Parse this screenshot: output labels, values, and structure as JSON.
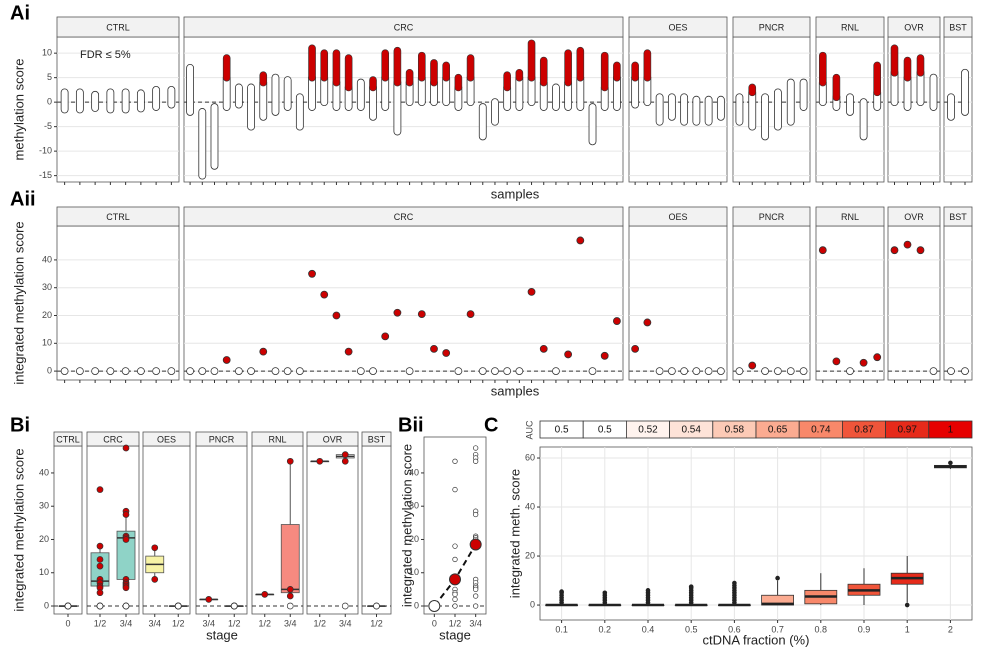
{
  "chart_data": [
    {
      "type": "strip",
      "label": "Ai",
      "ylabel": "methylation score",
      "xlabel": "samples",
      "annotation": "FDR ≤ 5%",
      "ylim": [
        -16.3,
        13.3
      ],
      "yticks": [
        -15,
        -10,
        -5,
        0,
        5,
        10
      ],
      "grid": true,
      "hline": 0,
      "color": "#ffffff",
      "sig_color": "#cc0000",
      "facets": [
        {
          "name": "CTRL",
          "low": [
            -1.5,
            -1.5,
            -1.2,
            -1.5,
            -1.5,
            -1.3,
            -1,
            -0.5
          ],
          "high": [
            2,
            2,
            1.5,
            2,
            2,
            1.8,
            2.5,
            2.5
          ],
          "sig": [
            null,
            null,
            null,
            null,
            null,
            null,
            null,
            null
          ]
        },
        {
          "name": "CRC",
          "low": [
            -2,
            -15,
            -13,
            -1,
            -0.5,
            -5,
            -3,
            -2,
            -1,
            -5,
            -1,
            0,
            -1,
            -1,
            -1,
            -3,
            -1,
            -6,
            0,
            0,
            0,
            0,
            -1,
            0,
            -7,
            -4,
            -1,
            -1,
            0,
            -1,
            -1,
            -1,
            -1,
            -8,
            -1,
            -1
          ],
          "high": [
            7,
            -2,
            -1,
            5,
            3,
            3,
            4,
            5,
            4.5,
            1,
            5,
            5,
            4,
            3,
            4,
            3,
            5,
            4,
            4,
            5,
            4,
            5,
            3,
            5,
            -1,
            0,
            3,
            5,
            5,
            4,
            3,
            4,
            5,
            -1,
            3,
            5
          ],
          "sig": [
            null,
            null,
            null,
            9,
            null,
            null,
            5.5,
            null,
            null,
            null,
            11,
            10,
            10,
            9,
            null,
            4.5,
            10,
            10.5,
            6,
            9.5,
            8,
            7.5,
            5,
            9,
            null,
            null,
            5.5,
            6,
            12,
            8.5,
            null,
            10,
            10.5,
            null,
            9.5,
            7.5
          ]
        },
        {
          "name": "OES",
          "low": [
            -0.5,
            0,
            -4,
            -3,
            -4,
            -4,
            -4,
            -3
          ],
          "high": [
            5,
            5,
            1,
            1,
            1,
            0.5,
            0.5,
            0.5
          ],
          "sig": [
            7.5,
            10,
            null,
            null,
            null,
            null,
            null,
            null
          ]
        },
        {
          "name": "PNCR",
          "low": [
            -4,
            -5,
            -7,
            -5,
            -4,
            -1
          ],
          "high": [
            1,
            2,
            1,
            2,
            4,
            4
          ],
          "sig": [
            null,
            3,
            null,
            null,
            null,
            null
          ]
        },
        {
          "name": "RNL",
          "low": [
            0,
            -1,
            -2,
            -7,
            -1
          ],
          "high": [
            4,
            1,
            1,
            0,
            2
          ],
          "sig": [
            9.5,
            5,
            null,
            null,
            7.5
          ]
        },
        {
          "name": "OVR",
          "low": [
            0,
            -1,
            0,
            -1
          ],
          "high": [
            6,
            5,
            6,
            5
          ],
          "sig": [
            11,
            8.5,
            9,
            null
          ]
        },
        {
          "name": "BST",
          "low": [
            -3,
            -2
          ],
          "high": [
            1,
            6
          ],
          "sig": [
            null,
            null
          ]
        }
      ]
    },
    {
      "type": "dot",
      "label": "Aii",
      "ylabel": "integrated methylation score",
      "xlabel": "samples",
      "ylim": [
        -3.2,
        52.2
      ],
      "yticks": [
        0,
        10,
        20,
        30,
        40
      ],
      "grid": true,
      "hline": 0,
      "color": "#cc0000",
      "zero_color": "#ffffff",
      "facets": [
        {
          "name": "CTRL",
          "values": [
            0,
            0,
            0,
            0,
            0,
            0,
            0,
            0
          ]
        },
        {
          "name": "CRC",
          "values": [
            0,
            0,
            0,
            4,
            0,
            0,
            7,
            0,
            0,
            0,
            35,
            27.5,
            20,
            7,
            0,
            0,
            12.5,
            21,
            0,
            20.5,
            8,
            6.5,
            0,
            20.5,
            0,
            0,
            0,
            0,
            28.5,
            8,
            0,
            6,
            47,
            0,
            5.5,
            18
          ]
        },
        {
          "name": "OES",
          "values": [
            8,
            17.5,
            0,
            0,
            0,
            0,
            0,
            0
          ]
        },
        {
          "name": "PNCR",
          "values": [
            0,
            2,
            0,
            0,
            0,
            0
          ]
        },
        {
          "name": "RNL",
          "values": [
            43.5,
            3.5,
            0,
            3,
            5
          ]
        },
        {
          "name": "OVR",
          "values": [
            43.5,
            45.5,
            43.5,
            0
          ]
        },
        {
          "name": "BST",
          "values": [
            0,
            0
          ]
        }
      ]
    },
    {
      "type": "box",
      "label": "Bi",
      "ylabel": "integrated methylation score",
      "xlabel": "stage",
      "ylim": [
        -2.4,
        48.1
      ],
      "yticks": [
        0,
        10,
        20,
        30,
        40
      ],
      "grid": false,
      "hline": 0,
      "color": "#cc0000",
      "zero_color": "#ffffff",
      "facets": [
        {
          "name": "CTRL",
          "color": "#ffffff",
          "groups": [
            {
              "stage": "0",
              "q1": 0,
              "median": 0,
              "q3": 0,
              "whisker_low": 0,
              "whisker_high": 0,
              "points": [
                0,
                0,
                0,
                0,
                0,
                0,
                0,
                0
              ]
            }
          ]
        },
        {
          "name": "CRC",
          "color": "#8fd3c7",
          "groups": [
            {
              "stage": "1/2",
              "q1": 6,
              "median": 7.5,
              "q3": 16,
              "whisker_low": 4,
              "whisker_high": 18,
              "points": [
                35,
                18,
                14,
                12,
                8,
                7,
                6,
                5.5,
                4,
                0,
                0,
                0,
                0
              ]
            },
            {
              "stage": "3/4",
              "q1": 8,
              "median": 20.5,
              "q3": 22.5,
              "whisker_low": 5.5,
              "whisker_high": 28.5,
              "points": [
                47.5,
                28.5,
                27.5,
                21,
                20.5,
                20,
                8,
                7,
                6.5,
                6,
                5.5,
                0,
                0,
                0
              ]
            }
          ]
        },
        {
          "name": "OES",
          "color": "#f7f3a6",
          "groups": [
            {
              "stage": "3/4",
              "q1": 10,
              "median": 12.5,
              "q3": 15,
              "whisker_low": 8,
              "whisker_high": 17.5,
              "points": [
                17.5,
                8
              ]
            },
            {
              "stage": "1/2",
              "q1": 0,
              "median": 0,
              "q3": 0,
              "whisker_low": 0,
              "whisker_high": 0,
              "points": [
                0,
                0,
                0,
                0,
                0,
                0
              ]
            }
          ]
        },
        {
          "name": "PNCR",
          "color": "#ffffff",
          "groups": [
            {
              "stage": "3/4",
              "q1": 2,
              "median": 2,
              "q3": 2,
              "whisker_low": 2,
              "whisker_high": 2,
              "points": [
                2
              ]
            },
            {
              "stage": "1/2",
              "q1": 0,
              "median": 0,
              "q3": 0,
              "whisker_low": 0,
              "whisker_high": 0,
              "points": [
                0,
                0,
                0,
                0,
                0
              ]
            }
          ]
        },
        {
          "name": "RNL",
          "color": "#f68a80",
          "groups": [
            {
              "stage": "1/2",
              "q1": 3.5,
              "median": 3.5,
              "q3": 3.5,
              "whisker_low": 3.5,
              "whisker_high": 3.5,
              "points": [
                3.5
              ]
            },
            {
              "stage": "3/4",
              "q1": 4,
              "median": 5,
              "q3": 24.5,
              "whisker_low": 3,
              "whisker_high": 43.5,
              "points": [
                43.5,
                5,
                3,
                0
              ]
            }
          ]
        },
        {
          "name": "OVR",
          "color": "#ffffff",
          "groups": [
            {
              "stage": "1/2",
              "q1": 43.5,
              "median": 43.5,
              "q3": 43.5,
              "whisker_low": 43.5,
              "whisker_high": 43.5,
              "points": [
                43.5
              ]
            },
            {
              "stage": "3/4",
              "q1": 44.5,
              "median": 45,
              "q3": 45.5,
              "whisker_low": 43.5,
              "whisker_high": 45.5,
              "points": [
                45.5,
                43.5,
                0
              ]
            }
          ]
        },
        {
          "name": "BST",
          "color": "#ffffff",
          "groups": [
            {
              "stage": "1/2",
              "q1": 0,
              "median": 0,
              "q3": 0,
              "whisker_low": 0,
              "whisker_high": 0,
              "points": [
                0,
                0
              ]
            }
          ]
        }
      ]
    },
    {
      "type": "stage",
      "label": "Bii",
      "ylabel": "integrated methylation score",
      "xlabel": "stage",
      "ylim": [
        -2.4,
        50.8
      ],
      "yticks": [
        0,
        10,
        20,
        30,
        40
      ],
      "grid": false,
      "hline": 0,
      "color": "#cc0000",
      "zero_color": "#ffffff",
      "categories": [
        "0",
        "1/2",
        "3/4"
      ],
      "means": [
        0,
        8,
        18.5
      ],
      "points": [
        [
          0,
          0,
          0
        ],
        [
          43.5,
          35,
          18,
          14,
          8,
          5,
          4,
          3.5,
          2,
          0
        ],
        [
          47.5,
          45.5,
          44.5,
          43.5,
          28.5,
          27.5,
          21,
          20.5,
          20,
          17.5,
          8,
          7,
          6,
          5.5,
          5,
          3,
          0
        ]
      ]
    },
    {
      "type": "auc_box",
      "label": "C",
      "ylabel": "integrated meth. score",
      "xlabel": "ctDNA fraction (%)",
      "auc_label": "AUC",
      "ylim": [
        -6.1,
        64.5
      ],
      "yticks": [
        0,
        20,
        40,
        60
      ],
      "grid": true,
      "categories": [
        "0.1",
        "0.2",
        "0.4",
        "0.5",
        "0.6",
        "0.7",
        "0.8",
        "0.9",
        "1",
        "2"
      ],
      "auc": [
        0.5,
        0.5,
        0.52,
        0.54,
        0.58,
        0.65,
        0.74,
        0.87,
        0.97,
        1
      ],
      "colors": [
        "#ffffff",
        "#ffffff",
        "#fff3ee",
        "#fee3d8",
        "#fccab6",
        "#fbab91",
        "#f8886a",
        "#f0553a",
        "#e62a1a",
        "#e60000"
      ],
      "q1": [
        0,
        0,
        0,
        0,
        0,
        0,
        0.5,
        4,
        8.5,
        56
      ],
      "median": [
        0,
        0,
        0,
        0,
        0,
        0.5,
        3.5,
        6,
        11,
        56.5
      ],
      "q3": [
        0,
        0,
        0,
        0,
        0,
        4,
        6,
        8.5,
        13,
        57
      ],
      "whisker_low": [
        0,
        0,
        0,
        0,
        0,
        0,
        0,
        0,
        1,
        55.5
      ],
      "whisker_high": [
        0,
        0,
        0,
        0,
        0,
        10,
        13,
        15,
        20,
        57.5
      ],
      "outliers": [
        [
          1,
          2,
          3,
          4,
          5,
          5.5
        ],
        [
          1,
          2,
          3,
          4,
          5
        ],
        [
          1,
          2,
          3,
          4,
          5,
          6
        ],
        [
          1,
          2,
          3,
          4,
          5,
          6,
          7,
          7.5
        ],
        [
          1,
          2,
          3,
          4,
          5,
          6,
          7,
          8,
          9
        ],
        [
          11
        ],
        [],
        [],
        [
          0
        ],
        [
          58
        ]
      ]
    }
  ]
}
